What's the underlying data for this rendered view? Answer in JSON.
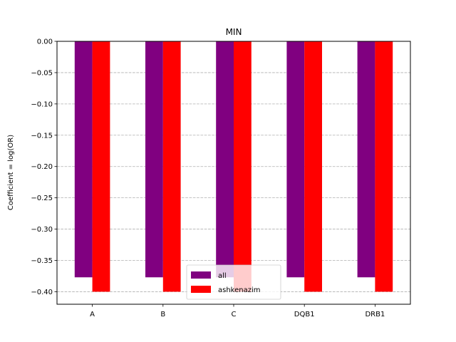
{
  "chart_data": {
    "type": "bar",
    "title": "MIN",
    "xlabel": "",
    "ylabel": "Coefficient = log(OR)",
    "categories": [
      "A",
      "B",
      "C",
      "DQB1",
      "DRB1"
    ],
    "series": [
      {
        "name": "all",
        "color": "#800080",
        "values": [
          -0.377,
          -0.377,
          -0.377,
          -0.377,
          -0.377
        ]
      },
      {
        "name": "ashkenazim",
        "color": "#ff0000",
        "values": [
          -0.4,
          -0.4,
          -0.4,
          -0.4,
          -0.4
        ]
      }
    ],
    "ylim": [
      -0.42,
      0.0
    ],
    "yticks": [
      0.0,
      -0.05,
      -0.1,
      -0.15,
      -0.2,
      -0.25,
      -0.3,
      -0.35,
      -0.4
    ],
    "ytick_labels": [
      "0.00",
      "−0.05",
      "−0.10",
      "−0.15",
      "−0.20",
      "−0.25",
      "−0.30",
      "−0.35",
      "−0.40"
    ],
    "grid": "y-dashed",
    "legend_position": "bottom-center"
  }
}
